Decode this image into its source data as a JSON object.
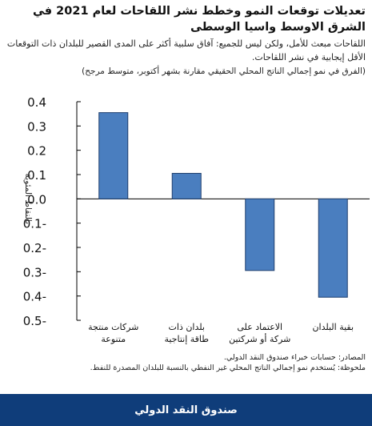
{
  "header": {
    "title": "تعديلات توقعات النمو وخطط نشر اللقاحات لعام 2021 في الشرق الاوسط واسيا الوسطى",
    "subtitle": "اللقاحات مبعث للأمل، ولكن ليس للجميع: آفاق سلبية أكثر على المدى القصير للبلدان ذات التوقعات الأقل إيجابية في نشر اللقاحات.",
    "note": "(الفرق في نمو إجمالي الناتج المحلي الحقيقي مقارنة بشهر أكتوبر، متوسط مرجح)"
  },
  "footer": {
    "sources": "المصادر: حسابات خبراء صندوق النقد الدولي.",
    "remark": "ملحوظة: يُستخدم نمو إجمالي الناتج المحلي غير النفطي بالنسبة للبلدان المصدرة للنفط.",
    "brand": "صندوق النقد الدولي"
  },
  "chart_data": {
    "type": "bar",
    "ylabel": "بالنقاط المئوية",
    "ylim": [
      -0.5,
      0.4
    ],
    "yticks": [
      0.4,
      0.3,
      0.2,
      0.1,
      0.0,
      -0.1,
      -0.2,
      -0.3,
      -0.4,
      -0.5
    ],
    "ytick_labels": [
      "0.4",
      "0.3",
      "0.2",
      "0.1",
      "0.0",
      "0.1-",
      "0.2-",
      "0.3-",
      "0.4-",
      "0.5-"
    ],
    "categories": [
      [
        "شركات منتجة",
        "متنوعة"
      ],
      [
        "بلدان ذات",
        "طاقة إنتاجية"
      ],
      [
        "الاعتماد على",
        "شركة أو شركتين"
      ],
      [
        "بقية البلدان"
      ]
    ],
    "values": [
      0.355,
      0.105,
      -0.295,
      -0.405
    ],
    "bar_color": "#4a7ebf",
    "bar_edge": "#1f3f6e",
    "grid": false
  }
}
